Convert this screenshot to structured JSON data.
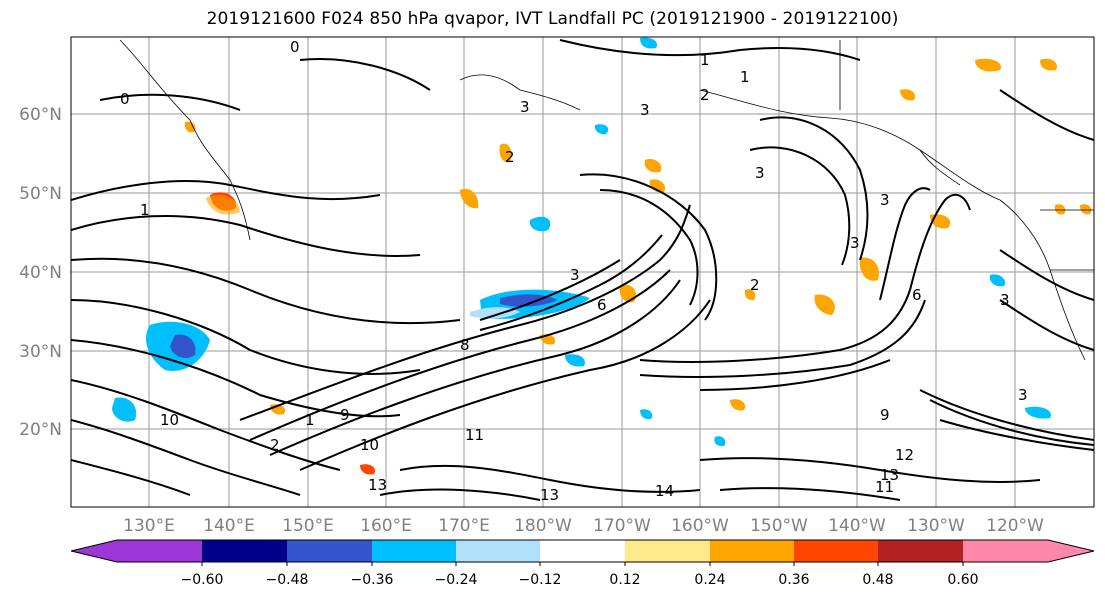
{
  "title": "2019121600 F024 850 hPa qvapor, IVT Landfall PC (2019121900 - 2019122100)",
  "map": {
    "lat_labels": [
      "60°N",
      "50°N",
      "40°N",
      "30°N",
      "20°N"
    ],
    "lon_labels": [
      "130°E",
      "140°E",
      "150°E",
      "160°E",
      "170°E",
      "180°W",
      "170°W",
      "160°W",
      "150°W",
      "140°W",
      "130°W",
      "120°W"
    ],
    "contour_labels": [
      "0",
      "0",
      "1",
      "1",
      "2",
      "3",
      "3",
      "3",
      "1",
      "2",
      "3",
      "3",
      "3",
      "3",
      "6",
      "6",
      "2",
      "8",
      "9",
      "10",
      "10",
      "11",
      "12",
      "11",
      "13",
      "13",
      "14",
      "9",
      "13",
      "1",
      "2",
      "3"
    ]
  },
  "colorbar": {
    "ticks": [
      "−0.60",
      "−0.48",
      "−0.36",
      "−0.24",
      "−0.12",
      "0.12",
      "0.24",
      "0.36",
      "0.48",
      "0.60"
    ],
    "colors": [
      "#9c36d4",
      "#00008b",
      "#3355cc",
      "#00bfff",
      "#b0e0fa",
      "#ffffff",
      "#ffe98a",
      "#ffa500",
      "#ff4500",
      "#b22222",
      "#ff88aa"
    ]
  },
  "chart_data": {
    "type": "heatmap",
    "title": "2019121600 F024 850 hPa qvapor, IVT Landfall PC (2019121900 - 2019122100)",
    "lat_ticks": [
      60,
      50,
      40,
      30,
      20
    ],
    "lon_ticks": [
      "130°E",
      "140°E",
      "150°E",
      "160°E",
      "170°E",
      "180°W",
      "170°W",
      "160°W",
      "150°W",
      "140°W",
      "130°W",
      "120°W"
    ],
    "colorbar_levels": [
      -0.6,
      -0.48,
      -0.36,
      -0.24,
      -0.12,
      0.12,
      0.24,
      0.36,
      0.48,
      0.6
    ]
  }
}
